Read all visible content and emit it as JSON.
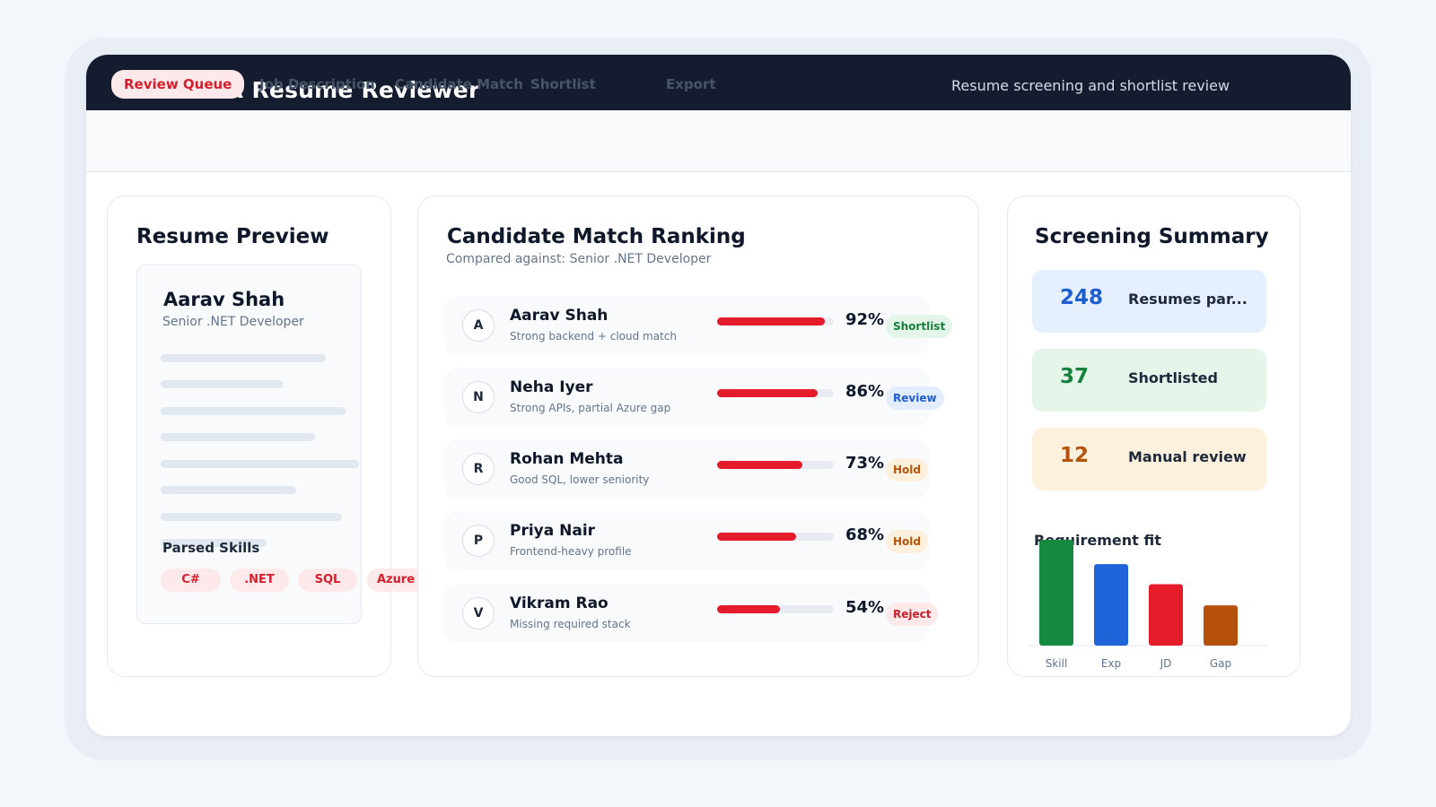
{
  "app": {
    "title": "HR Resume Reviewer",
    "subtitle": "Resume screening and shortlist review"
  },
  "tabs": [
    {
      "label": "Review Queue",
      "active": true
    },
    {
      "label": "Job Description",
      "active": false
    },
    {
      "label": "Candidate Match",
      "active": false
    },
    {
      "label": "Shortlist",
      "active": false
    },
    {
      "label": "Export",
      "active": false
    }
  ],
  "resume_preview": {
    "title": "Resume Preview",
    "candidate_name": "Aarav Shah",
    "candidate_role": "Senior .NET Developer",
    "skills_label": "Parsed Skills",
    "skills": [
      "C#",
      ".NET",
      "SQL",
      "Azure"
    ]
  },
  "ranking": {
    "title": "Candidate Match Ranking",
    "subtitle": "Compared against: Senior .NET Developer",
    "candidates": [
      {
        "initial": "A",
        "name": "Aarav Shah",
        "note": "Strong backend + cloud match",
        "score": 92,
        "score_label": "92%",
        "status": "Shortlist",
        "status_color": "#16803c",
        "status_bg": "#e3f6e9"
      },
      {
        "initial": "N",
        "name": "Neha Iyer",
        "note": "Strong APIs, partial Azure gap",
        "score": 86,
        "score_label": "86%",
        "status": "Review",
        "status_color": "#1d5fd0",
        "status_bg": "#e3edfd"
      },
      {
        "initial": "R",
        "name": "Rohan Mehta",
        "note": "Good SQL, lower seniority",
        "score": 73,
        "score_label": "73%",
        "status": "Hold",
        "status_color": "#b45309",
        "status_bg": "#fdf1de"
      },
      {
        "initial": "P",
        "name": "Priya Nair",
        "note": "Frontend-heavy profile",
        "score": 68,
        "score_label": "68%",
        "status": "Hold",
        "status_color": "#b45309",
        "status_bg": "#fdf1de"
      },
      {
        "initial": "V",
        "name": "Vikram Rao",
        "note": "Missing required stack",
        "score": 54,
        "score_label": "54%",
        "status": "Reject",
        "status_color": "#c81e2a",
        "status_bg": "#fde8ea"
      }
    ]
  },
  "summary": {
    "title": "Screening Summary",
    "stats": [
      {
        "value": "248",
        "label": "Resumes par...",
        "color": "#1d5fd0",
        "bg": "#e6effd"
      },
      {
        "value": "37",
        "label": "Shortlisted",
        "color": "#16803c",
        "bg": "#e5f5ea"
      },
      {
        "value": "12",
        "label": "Manual review",
        "color": "#b45309",
        "bg": "#fdf1de"
      }
    ],
    "fit_title": "Requirement fit"
  },
  "chart_data": {
    "type": "bar",
    "title": "Requirement fit",
    "categories": [
      "Skill",
      "Exp",
      "JD",
      "Gap"
    ],
    "values": [
      100,
      77,
      58,
      38
    ],
    "colors": [
      "#178a41",
      "#1f64d8",
      "#e51d2b",
      "#b5510c"
    ],
    "ylim": [
      0,
      100
    ]
  }
}
